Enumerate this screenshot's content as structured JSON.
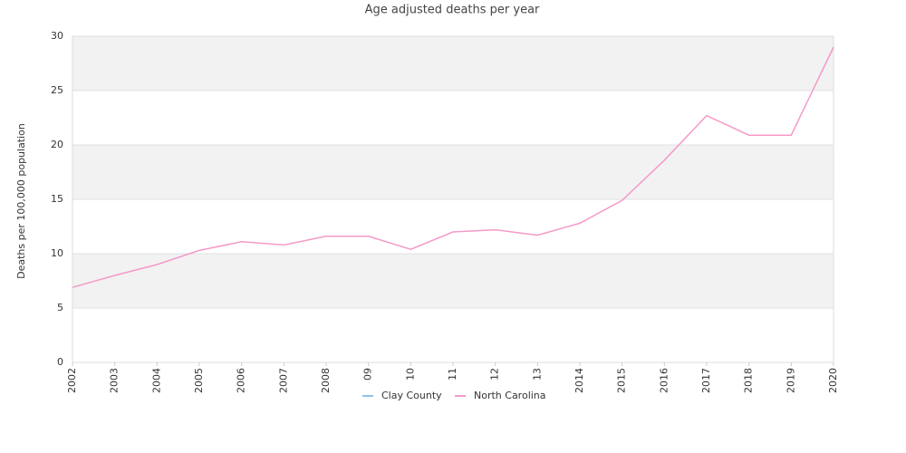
{
  "chart_data": {
    "type": "line",
    "title": "Age adjusted deaths per year",
    "y_label": "Deaths per 100,000 population",
    "categories": [
      "2002",
      "2003",
      "2004",
      "2005",
      "2006",
      "2007",
      "2008",
      "09",
      "10",
      "11",
      "12",
      "13",
      "2014",
      "2015",
      "2016",
      "2017",
      "2018",
      "2019",
      "2020"
    ],
    "series": [
      {
        "name": "Clay County",
        "color": "#8ec4e6",
        "values": [
          null,
          null,
          null,
          null,
          null,
          null,
          null,
          null,
          null,
          null,
          null,
          null,
          null,
          null,
          null,
          null,
          null,
          null,
          null
        ]
      },
      {
        "name": "North Carolina",
        "color": "#f49ac8",
        "values": [
          6.9,
          8.0,
          9.0,
          10.3,
          11.1,
          10.8,
          11.6,
          11.6,
          10.4,
          12.0,
          12.2,
          11.7,
          12.8,
          14.9,
          18.6,
          22.7,
          20.9,
          20.9,
          29.0
        ]
      }
    ],
    "ylim": [
      0,
      30
    ],
    "yticks": [
      0,
      5,
      10,
      15,
      20,
      25,
      30
    ],
    "grid": "banded",
    "legend": "bottom"
  }
}
